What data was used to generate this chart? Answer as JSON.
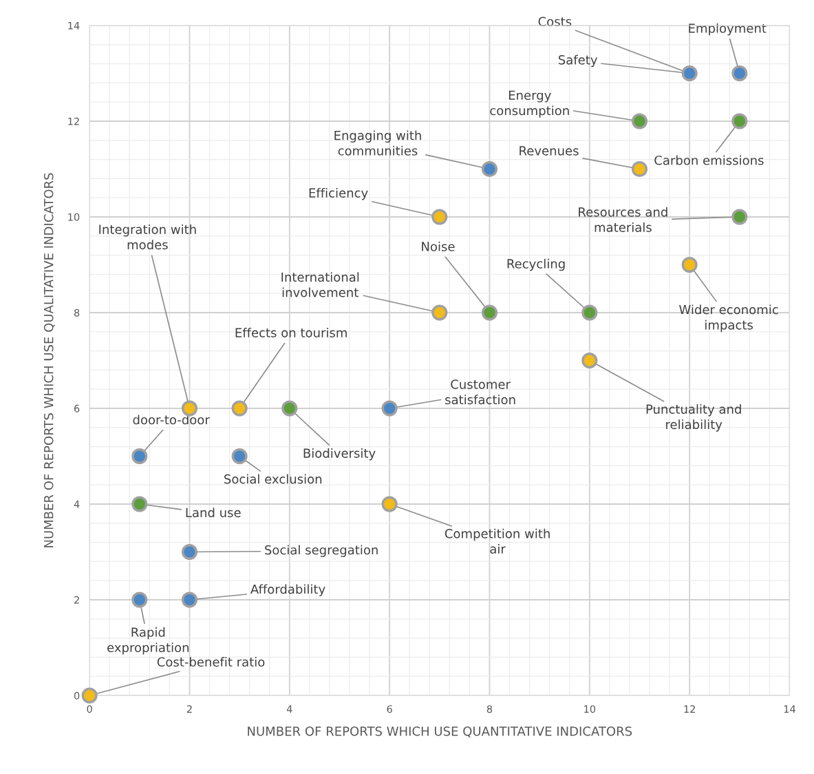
{
  "chart_data": {
    "type": "scatter",
    "xlabel": "NUMBER OF REPORTS WHICH USE QUANTITATIVE INDICATORS",
    "ylabel": "NUMBER OF REPORTS WHICH USE QUALITATIVE INDICATORS",
    "xlim": [
      0,
      14
    ],
    "ylim": [
      0,
      14
    ],
    "xticks": [
      0,
      2,
      4,
      6,
      8,
      10,
      12,
      14
    ],
    "yticks": [
      0,
      2,
      4,
      6,
      8,
      10,
      12,
      14
    ],
    "grid": true,
    "marker": "circle",
    "series": [
      {
        "color": "#4a86c5",
        "x": [
          12,
          13,
          8,
          6,
          1,
          3,
          2,
          2,
          1
        ],
        "values": [
          13,
          13,
          11,
          6,
          5,
          5,
          3,
          2,
          2
        ]
      },
      {
        "color": "#5b9e3a",
        "x": [
          11,
          13,
          13,
          8,
          10,
          4,
          1
        ],
        "values": [
          12,
          12,
          10,
          8,
          8,
          6,
          4
        ]
      },
      {
        "color": "#f2bb1a",
        "x": [
          11,
          7,
          12,
          7,
          10,
          2,
          3,
          6,
          0
        ],
        "values": [
          11,
          10,
          9,
          8,
          7,
          6,
          6,
          4,
          0
        ]
      }
    ],
    "annotations": [
      {
        "text": "Costs",
        "x": 12,
        "y": 13
      },
      {
        "text": "Safety",
        "x": 12,
        "y": 13
      },
      {
        "text": "Employment",
        "x": 13,
        "y": 13
      },
      {
        "text": "Energy\nconsumption",
        "x": 11,
        "y": 12
      },
      {
        "text": "Carbon emissions",
        "x": 13,
        "y": 12
      },
      {
        "text": "Engaging with\ncommunities",
        "x": 8,
        "y": 11
      },
      {
        "text": "Revenues",
        "x": 11,
        "y": 11
      },
      {
        "text": "Efficiency",
        "x": 7,
        "y": 10
      },
      {
        "text": "Resources and\nmaterials",
        "x": 13,
        "y": 10
      },
      {
        "text": "Wider economic\nimpacts",
        "x": 12,
        "y": 9
      },
      {
        "text": "Noise",
        "x": 8,
        "y": 8
      },
      {
        "text": "Recycling",
        "x": 10,
        "y": 8
      },
      {
        "text": "International\ninvolvement",
        "x": 7,
        "y": 8
      },
      {
        "text": "Punctuality and\nreliability",
        "x": 10,
        "y": 7
      },
      {
        "text": "Integration with\nmodes",
        "x": 2,
        "y": 6
      },
      {
        "text": "Effects on tourism",
        "x": 3,
        "y": 6
      },
      {
        "text": "Biodiversity",
        "x": 4,
        "y": 6
      },
      {
        "text": "Customer\nsatisfaction",
        "x": 6,
        "y": 6
      },
      {
        "text": "door-to-door",
        "x": 1,
        "y": 5
      },
      {
        "text": "Social exclusion",
        "x": 3,
        "y": 5
      },
      {
        "text": "Land use",
        "x": 1,
        "y": 4
      },
      {
        "text": "Competition with\nair",
        "x": 6,
        "y": 4
      },
      {
        "text": "Social segregation",
        "x": 2,
        "y": 3
      },
      {
        "text": "Affordability",
        "x": 2,
        "y": 2
      },
      {
        "text": "Rapid\nexpropriation",
        "x": 1,
        "y": 2
      },
      {
        "text": "Cost-benefit ratio",
        "x": 0,
        "y": 0
      }
    ]
  }
}
